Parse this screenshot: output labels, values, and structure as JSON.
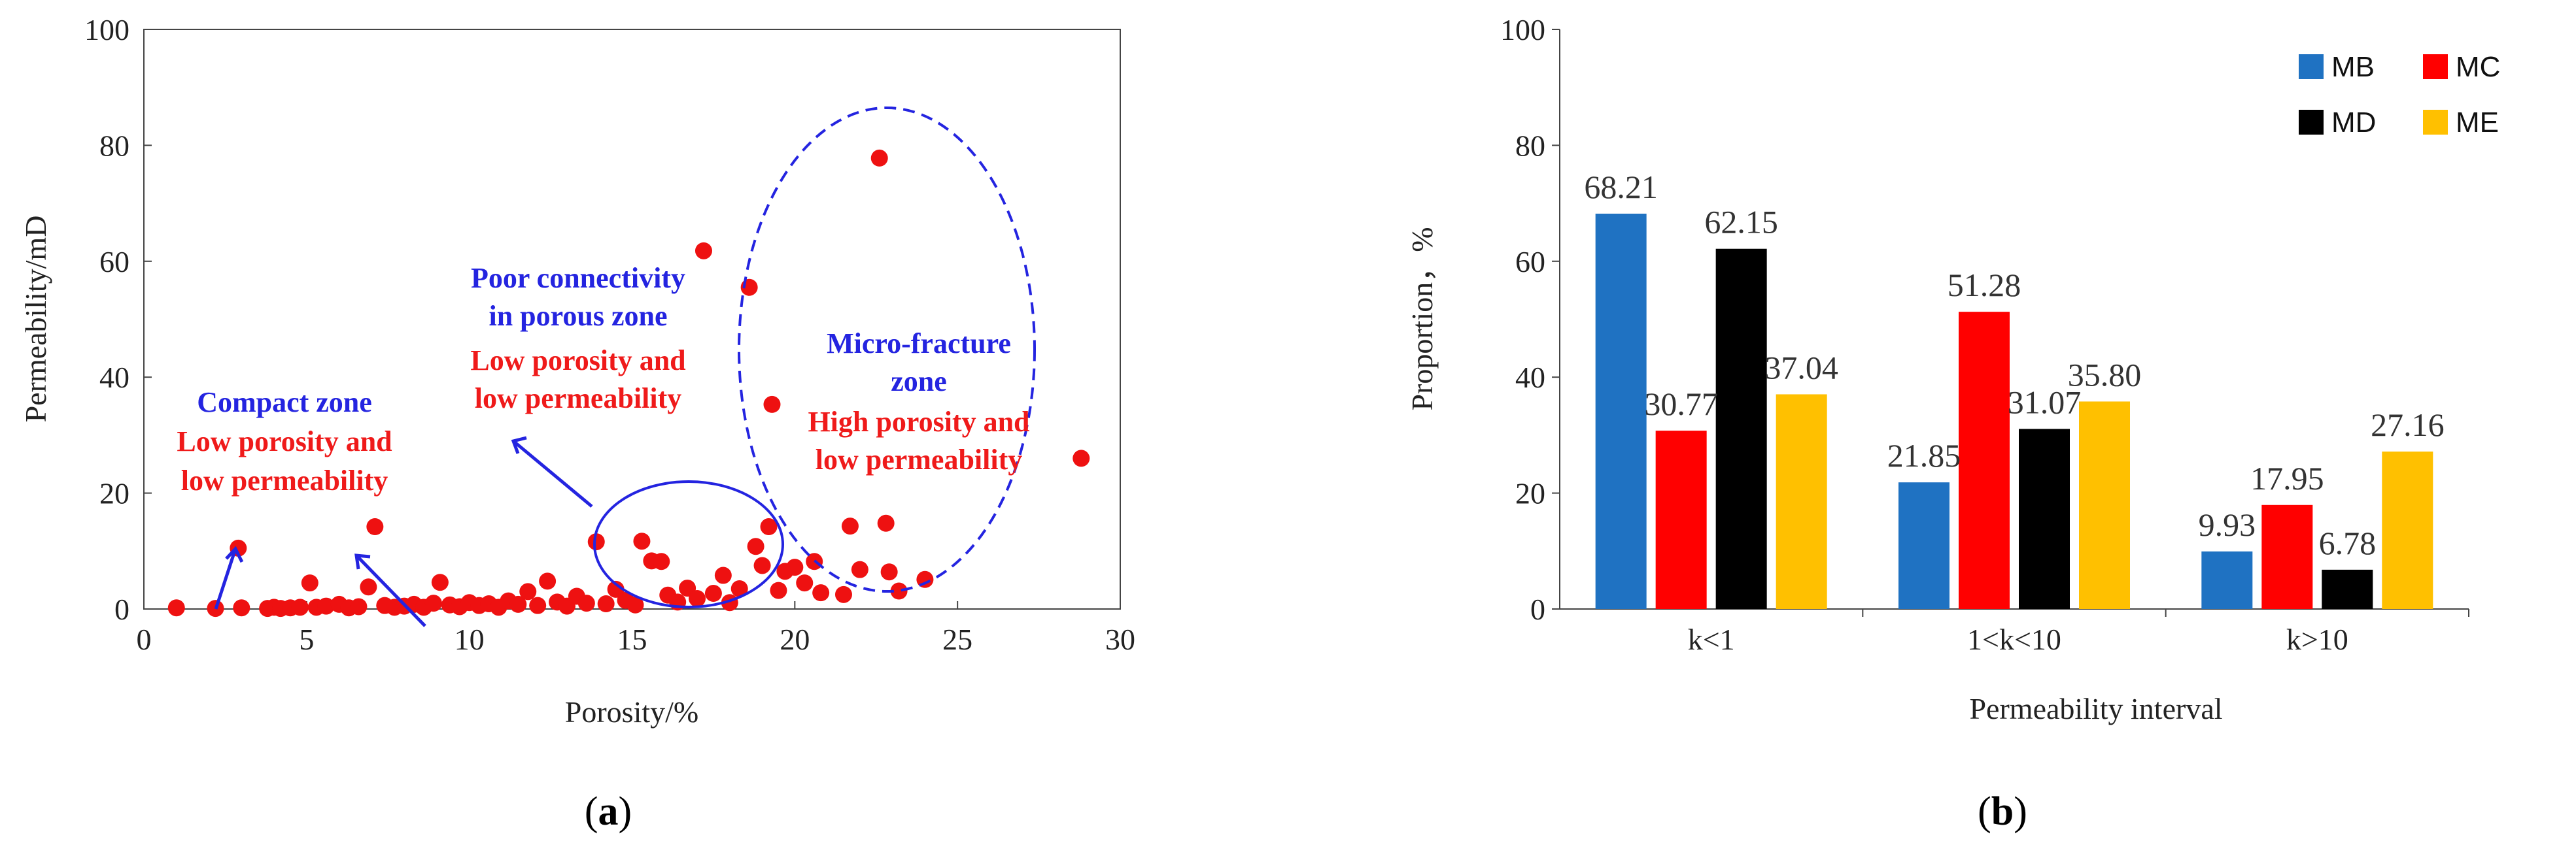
{
  "panel_a": {
    "caption_open": "(",
    "caption_letter": "a",
    "caption_close": ")",
    "annotations": {
      "compact_title": "Compact zone",
      "compact_line1": "Low porosity and",
      "compact_line2": "low permeability",
      "poor_title1": "Poor connectivity",
      "poor_title2": "in porous zone",
      "poor_line1": "Low porosity and",
      "poor_line2": "low permeability",
      "micro_title1": "Micro-fracture",
      "micro_title2": "zone",
      "micro_line1": "High porosity and",
      "micro_line2": "low permeability"
    }
  },
  "panel_b": {
    "caption_open": "(",
    "caption_letter": "b",
    "caption_close": ")"
  },
  "colors": {
    "scatter": "#ee1111",
    "annotation_blue": "#2424e0",
    "annotation_red": "#ef1a1a",
    "MB": "#1f72c2",
    "MC": "#ff0000",
    "MD": "#000000",
    "ME": "#ffc000"
  },
  "chart_data": [
    {
      "type": "scatter",
      "title": "",
      "xlabel": "Porosity/%",
      "ylabel": "Permeability/mD",
      "xlim": [
        0,
        30
      ],
      "ylim": [
        0,
        100
      ],
      "xticks": [
        "0",
        "5",
        "10",
        "15",
        "20",
        "25",
        "30"
      ],
      "yticks": [
        "0",
        "20",
        "40",
        "60",
        "80",
        "100"
      ],
      "points": [
        {
          "x": 1.0,
          "y": 0.2
        },
        {
          "x": 2.2,
          "y": 0.1
        },
        {
          "x": 2.9,
          "y": 10.5
        },
        {
          "x": 3.0,
          "y": 0.2
        },
        {
          "x": 3.8,
          "y": 0.1
        },
        {
          "x": 4.0,
          "y": 0.3
        },
        {
          "x": 4.2,
          "y": 0.1
        },
        {
          "x": 4.5,
          "y": 0.2
        },
        {
          "x": 4.8,
          "y": 0.3
        },
        {
          "x": 5.1,
          "y": 4.5
        },
        {
          "x": 5.3,
          "y": 0.3
        },
        {
          "x": 5.6,
          "y": 0.5
        },
        {
          "x": 6.0,
          "y": 0.8
        },
        {
          "x": 6.3,
          "y": 0.2
        },
        {
          "x": 6.6,
          "y": 0.4
        },
        {
          "x": 6.9,
          "y": 3.8
        },
        {
          "x": 7.1,
          "y": 14.2
        },
        {
          "x": 7.4,
          "y": 0.6
        },
        {
          "x": 7.7,
          "y": 0.3
        },
        {
          "x": 8.0,
          "y": 0.5
        },
        {
          "x": 8.3,
          "y": 0.8
        },
        {
          "x": 8.6,
          "y": 0.3
        },
        {
          "x": 8.9,
          "y": 1.0
        },
        {
          "x": 9.1,
          "y": 4.6
        },
        {
          "x": 9.4,
          "y": 0.7
        },
        {
          "x": 9.7,
          "y": 0.4
        },
        {
          "x": 10.0,
          "y": 1.1
        },
        {
          "x": 10.3,
          "y": 0.6
        },
        {
          "x": 10.6,
          "y": 0.9
        },
        {
          "x": 10.9,
          "y": 0.3
        },
        {
          "x": 11.2,
          "y": 1.4
        },
        {
          "x": 11.5,
          "y": 0.8
        },
        {
          "x": 11.8,
          "y": 3.0
        },
        {
          "x": 12.1,
          "y": 0.6
        },
        {
          "x": 12.4,
          "y": 4.8
        },
        {
          "x": 12.7,
          "y": 1.2
        },
        {
          "x": 13.0,
          "y": 0.5
        },
        {
          "x": 13.3,
          "y": 2.2
        },
        {
          "x": 13.6,
          "y": 1.0
        },
        {
          "x": 13.9,
          "y": 11.6
        },
        {
          "x": 14.2,
          "y": 0.9
        },
        {
          "x": 14.5,
          "y": 3.4
        },
        {
          "x": 14.8,
          "y": 1.5
        },
        {
          "x": 15.1,
          "y": 0.7
        },
        {
          "x": 15.3,
          "y": 11.7
        },
        {
          "x": 15.6,
          "y": 8.3
        },
        {
          "x": 15.9,
          "y": 8.2
        },
        {
          "x": 16.1,
          "y": 2.4
        },
        {
          "x": 16.4,
          "y": 1.2
        },
        {
          "x": 16.7,
          "y": 3.6
        },
        {
          "x": 17.0,
          "y": 1.8
        },
        {
          "x": 17.2,
          "y": 61.8
        },
        {
          "x": 17.5,
          "y": 2.7
        },
        {
          "x": 17.8,
          "y": 5.8
        },
        {
          "x": 18.0,
          "y": 1.1
        },
        {
          "x": 18.3,
          "y": 3.5
        },
        {
          "x": 18.6,
          "y": 55.5
        },
        {
          "x": 18.8,
          "y": 10.8
        },
        {
          "x": 19.0,
          "y": 7.5
        },
        {
          "x": 19.2,
          "y": 14.2
        },
        {
          "x": 19.3,
          "y": 35.3
        },
        {
          "x": 19.5,
          "y": 3.2
        },
        {
          "x": 19.7,
          "y": 6.5
        },
        {
          "x": 20.0,
          "y": 7.2
        },
        {
          "x": 20.3,
          "y": 4.5
        },
        {
          "x": 20.6,
          "y": 8.2
        },
        {
          "x": 20.8,
          "y": 2.8
        },
        {
          "x": 21.5,
          "y": 2.5
        },
        {
          "x": 21.7,
          "y": 14.3
        },
        {
          "x": 22.0,
          "y": 6.8
        },
        {
          "x": 22.6,
          "y": 77.8
        },
        {
          "x": 22.8,
          "y": 14.8
        },
        {
          "x": 22.9,
          "y": 6.4
        },
        {
          "x": 23.2,
          "y": 3.1
        },
        {
          "x": 24.0,
          "y": 5.1
        },
        {
          "x": 28.8,
          "y": 26.0
        }
      ]
    },
    {
      "type": "bar",
      "title": "",
      "xlabel": "Permeability interval",
      "ylabel": "Proportion，%",
      "ylim": [
        0,
        100
      ],
      "yticks": [
        "0",
        "20",
        "40",
        "60",
        "80",
        "100"
      ],
      "categories": [
        "k<1",
        "1<k<10",
        "k>10"
      ],
      "series": [
        {
          "name": "MB",
          "values": [
            68.21,
            21.85,
            9.93
          ],
          "labels": [
            "68.21",
            "21.85",
            "9.93"
          ]
        },
        {
          "name": "MC",
          "values": [
            30.77,
            51.28,
            17.95
          ],
          "labels": [
            "30.77",
            "51.28",
            "17.95"
          ]
        },
        {
          "name": "MD",
          "values": [
            62.15,
            31.07,
            6.78
          ],
          "labels": [
            "62.15",
            "31.07",
            "6.78"
          ]
        },
        {
          "name": "ME",
          "values": [
            37.04,
            35.8,
            27.16
          ],
          "labels": [
            "37.04",
            "35.80",
            "27.16"
          ]
        }
      ],
      "legend_position": "top-right"
    }
  ]
}
